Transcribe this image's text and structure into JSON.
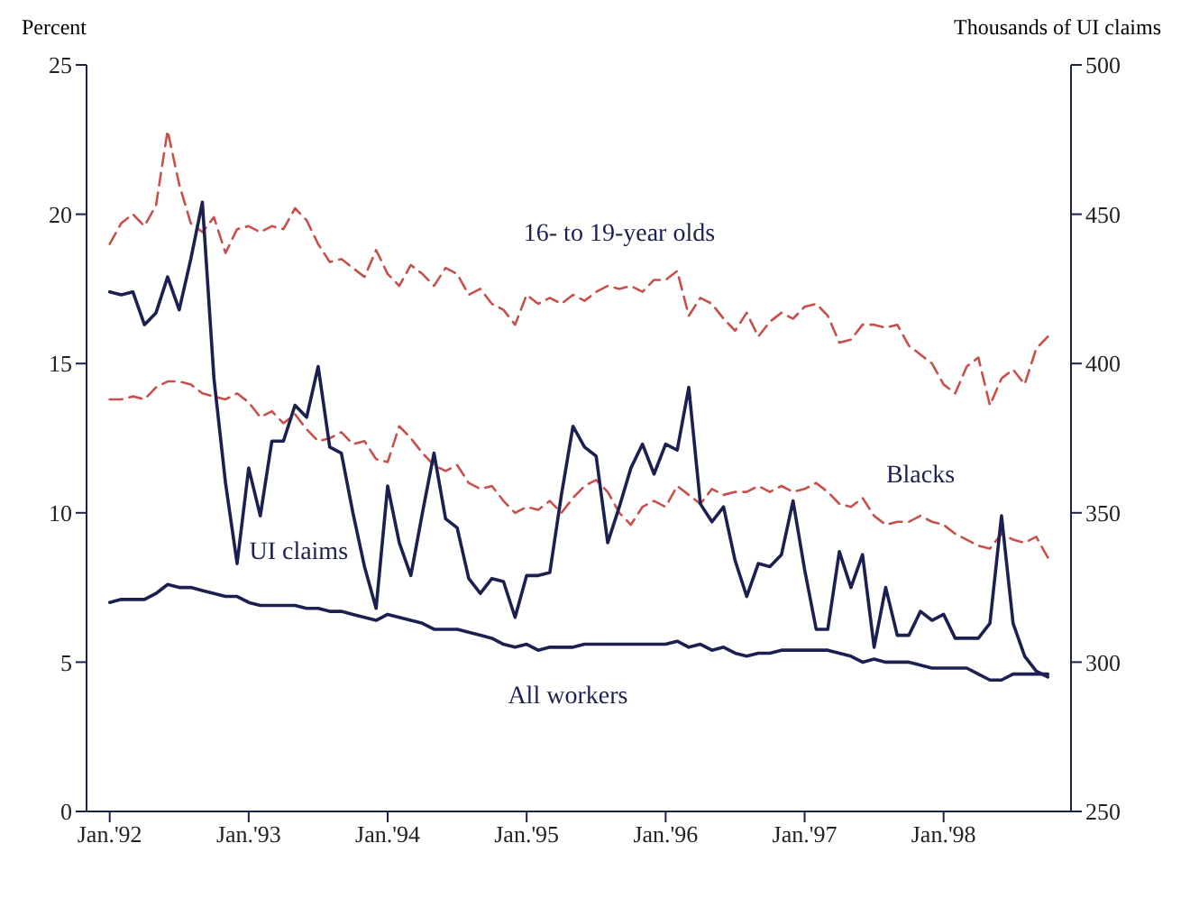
{
  "chart_data": {
    "type": "line",
    "ylabel": "Percent",
    "y2label": "Thousands of UI claims",
    "x": [
      "1992-01",
      "1992-02",
      "1992-03",
      "1992-04",
      "1992-05",
      "1992-06",
      "1992-07",
      "1992-08",
      "1992-09",
      "1992-10",
      "1992-11",
      "1992-12",
      "1993-01",
      "1993-02",
      "1993-03",
      "1993-04",
      "1993-05",
      "1993-06",
      "1993-07",
      "1993-08",
      "1993-09",
      "1993-10",
      "1993-11",
      "1993-12",
      "1994-01",
      "1994-02",
      "1994-03",
      "1994-04",
      "1994-05",
      "1994-06",
      "1994-07",
      "1994-08",
      "1994-09",
      "1994-10",
      "1994-11",
      "1994-12",
      "1995-01",
      "1995-02",
      "1995-03",
      "1995-04",
      "1995-05",
      "1995-06",
      "1995-07",
      "1995-08",
      "1995-09",
      "1995-10",
      "1995-11",
      "1995-12",
      "1996-01",
      "1996-02",
      "1996-03",
      "1996-04",
      "1996-05",
      "1996-06",
      "1996-07",
      "1996-08",
      "1996-09",
      "1996-10",
      "1996-11",
      "1996-12",
      "1997-01",
      "1997-02",
      "1997-03",
      "1997-04",
      "1997-05",
      "1997-06",
      "1997-07",
      "1997-08",
      "1997-09",
      "1997-10",
      "1997-11",
      "1997-12",
      "1998-01",
      "1998-02",
      "1998-03",
      "1998-04",
      "1998-05",
      "1998-06",
      "1998-07",
      "1998-08",
      "1998-09",
      "1998-10"
    ],
    "series": [
      {
        "name": "16- to 19-year olds",
        "color": "#c8504a",
        "line_style": "dashed",
        "values": [
          19.0,
          19.7,
          20.0,
          19.6,
          20.3,
          22.8,
          21.0,
          19.7,
          19.4,
          19.9,
          18.7,
          19.5,
          19.6,
          19.4,
          19.6,
          19.5,
          20.2,
          19.8,
          19.0,
          18.4,
          18.5,
          18.2,
          17.9,
          18.8,
          18.0,
          17.6,
          18.3,
          18.0,
          17.6,
          18.2,
          18.0,
          17.3,
          17.5,
          17.0,
          16.8,
          16.3,
          17.3,
          17.0,
          17.2,
          17.0,
          17.3,
          17.1,
          17.4,
          17.6,
          17.5,
          17.6,
          17.4,
          17.8,
          17.8,
          18.1,
          16.6,
          17.2,
          17.0,
          16.5,
          16.1,
          16.7,
          15.9,
          16.4,
          16.7,
          16.5,
          16.9,
          17.0,
          16.6,
          15.7,
          15.8,
          16.3,
          16.3,
          16.2,
          16.3,
          15.6,
          15.3,
          15.0,
          14.3,
          14.0,
          14.9,
          15.2,
          13.6,
          14.5,
          14.8,
          14.3,
          15.5,
          15.9
        ]
      },
      {
        "name": "Blacks",
        "color": "#c8504a",
        "line_style": "dashed",
        "values": [
          13.8,
          13.8,
          13.9,
          13.8,
          14.2,
          14.4,
          14.4,
          14.3,
          14.0,
          13.9,
          13.8,
          14.0,
          13.7,
          13.2,
          13.4,
          13.0,
          13.3,
          12.8,
          12.4,
          12.5,
          12.7,
          12.3,
          12.4,
          11.8,
          11.7,
          12.9,
          12.5,
          12.0,
          11.6,
          11.4,
          11.6,
          11.0,
          10.8,
          10.9,
          10.4,
          10.0,
          10.2,
          10.1,
          10.4,
          10.0,
          10.5,
          10.9,
          11.1,
          10.7,
          10.0,
          9.6,
          10.2,
          10.4,
          10.2,
          10.9,
          10.6,
          10.3,
          10.8,
          10.6,
          10.7,
          10.7,
          10.9,
          10.7,
          10.9,
          10.7,
          10.8,
          11.0,
          10.7,
          10.3,
          10.2,
          10.5,
          9.9,
          9.6,
          9.7,
          9.7,
          9.9,
          9.7,
          9.6,
          9.3,
          9.1,
          8.9,
          8.8,
          9.3,
          9.1,
          9.0,
          9.2,
          8.5
        ]
      },
      {
        "name": "UI claims",
        "color": "#1c2050",
        "line_style": "solid",
        "axis": "y2",
        "values": [
          424,
          423,
          424,
          413,
          417,
          429,
          418,
          435,
          454,
          395,
          360,
          333,
          365,
          349,
          374,
          374,
          386,
          382,
          399,
          372,
          370,
          350,
          332,
          318,
          359,
          340,
          329,
          350,
          370,
          348,
          345,
          328,
          323,
          328,
          327,
          315,
          329,
          329,
          330,
          356,
          379,
          372,
          369,
          340,
          352,
          365,
          373,
          363,
          373,
          371,
          392,
          353,
          347,
          352,
          334,
          322,
          333,
          332,
          336,
          354,
          331,
          311,
          311,
          337,
          325,
          336,
          305,
          325,
          309,
          309,
          317,
          314,
          316,
          308,
          308,
          308,
          313,
          349,
          313,
          302,
          297,
          295
        ]
      },
      {
        "name": "All workers",
        "color": "#1c2050",
        "line_style": "solid",
        "values": [
          7.0,
          7.1,
          7.1,
          7.1,
          7.3,
          7.6,
          7.5,
          7.5,
          7.4,
          7.3,
          7.2,
          7.2,
          7.0,
          6.9,
          6.9,
          6.9,
          6.9,
          6.8,
          6.8,
          6.7,
          6.7,
          6.6,
          6.5,
          6.4,
          6.6,
          6.5,
          6.4,
          6.3,
          6.1,
          6.1,
          6.1,
          6.0,
          5.9,
          5.8,
          5.6,
          5.5,
          5.6,
          5.4,
          5.5,
          5.5,
          5.5,
          5.6,
          5.6,
          5.6,
          5.6,
          5.6,
          5.6,
          5.6,
          5.6,
          5.7,
          5.5,
          5.6,
          5.4,
          5.5,
          5.3,
          5.2,
          5.3,
          5.3,
          5.4,
          5.4,
          5.4,
          5.4,
          5.4,
          5.3,
          5.2,
          5.0,
          5.1,
          5.0,
          5.0,
          5.0,
          4.9,
          4.8,
          4.8,
          4.8,
          4.8,
          4.6,
          4.4,
          4.4,
          4.6,
          4.6,
          4.6,
          4.6
        ]
      }
    ],
    "xlim": [
      "1991-11",
      "1998-12"
    ],
    "xticks": [
      {
        "value": "1992-01",
        "label": "Jan.'92"
      },
      {
        "value": "1993-01",
        "label": "Jan.'93"
      },
      {
        "value": "1994-01",
        "label": "Jan.'94"
      },
      {
        "value": "1995-01",
        "label": "Jan.'95"
      },
      {
        "value": "1996-01",
        "label": "Jan.'96"
      },
      {
        "value": "1997-01",
        "label": "Jan.'97"
      },
      {
        "value": "1998-01",
        "label": "Jan.'98"
      }
    ],
    "ylim": [
      0,
      25
    ],
    "yticks": [
      0,
      5,
      10,
      15,
      20,
      25
    ],
    "y2lim": [
      250,
      500
    ],
    "y2ticks": [
      250,
      300,
      350,
      400,
      450,
      500
    ],
    "marker": "none"
  }
}
